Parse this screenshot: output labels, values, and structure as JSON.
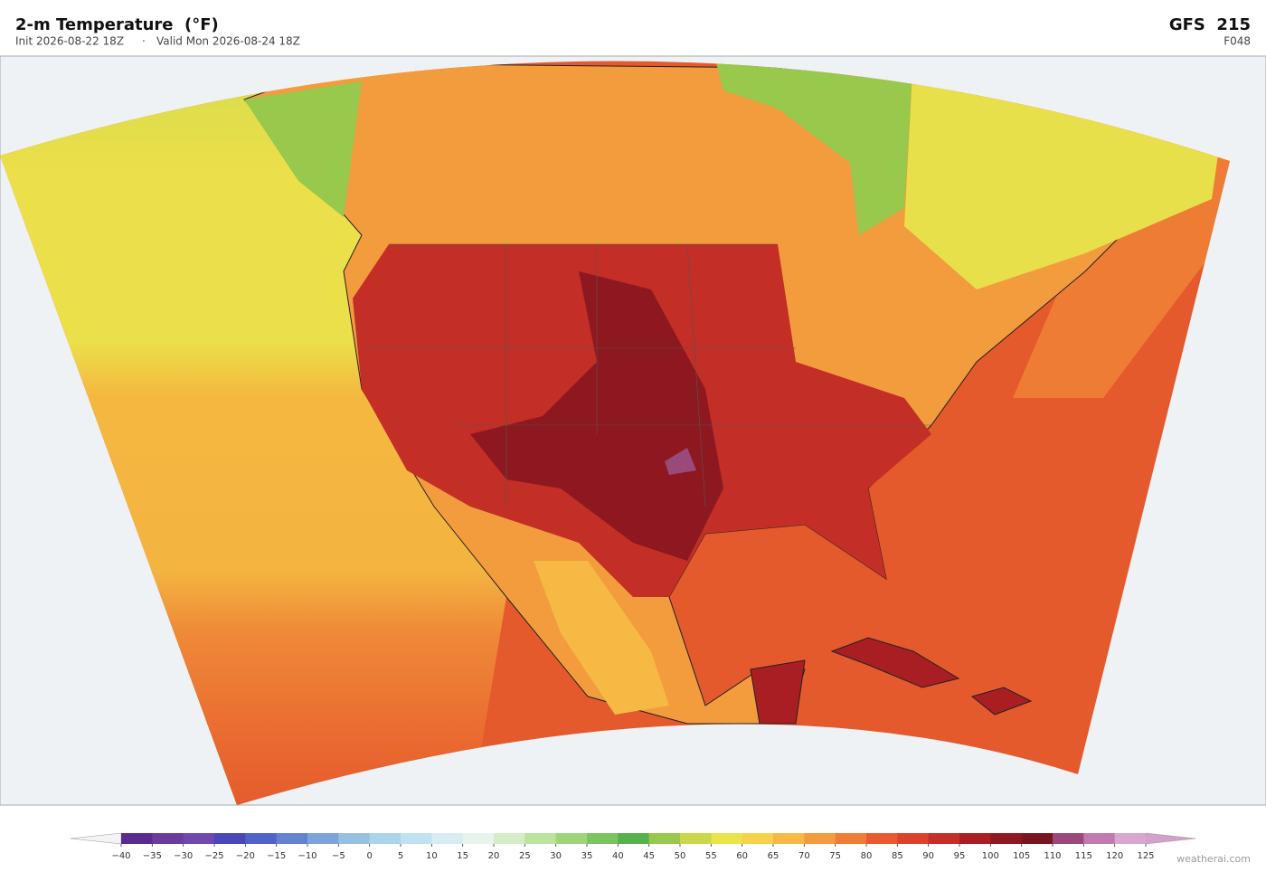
{
  "header": {
    "title": "2-m Temperature  (°F)",
    "init": "Init 2026-08-22 18Z",
    "valid": "Valid Mon 2026-08-24 18Z",
    "model": "GFS  215",
    "forecast_hour": "F048"
  },
  "colorbar": {
    "ticks": [
      {
        "value": -40,
        "label": "−40"
      },
      {
        "value": -35,
        "label": "−35"
      },
      {
        "value": -30,
        "label": "−30"
      },
      {
        "value": -25,
        "label": "−25"
      },
      {
        "value": -20,
        "label": "−20"
      },
      {
        "value": -15,
        "label": "−15"
      },
      {
        "value": -10,
        "label": "−10"
      },
      {
        "value": -5,
        "label": "−5"
      },
      0,
      5,
      10,
      15,
      20,
      25,
      30,
      35,
      40,
      45,
      50,
      55,
      60,
      65,
      70,
      75,
      80,
      85,
      90,
      95,
      100,
      105,
      110,
      115,
      120,
      125
    ],
    "colors": [
      "#5b2a90",
      "#6b3b9e",
      "#7048b0",
      "#4a48b8",
      "#4f63c8",
      "#6383d0",
      "#7ea3d8",
      "#95c0e0",
      "#abd4ea",
      "#c0e2f0",
      "#d5edf3",
      "#e6f4ec",
      "#d3edc8",
      "#bce49e",
      "#9fd57a",
      "#7cc460",
      "#58b04c",
      "#98c84c",
      "#c8d84a",
      "#e8e44a",
      "#f4d24a",
      "#f5b944",
      "#f29c3d",
      "#ee7c35",
      "#e65a2e",
      "#d8432a",
      "#c32e26",
      "#a81e22",
      "#8e1820",
      "#7a1420",
      "#9a4a7a",
      "#c07ab0",
      "#d9a6cf"
    ],
    "under_color": "#f4f4f4",
    "over_color": "#d4a0cc"
  },
  "watermark": "weatherai.com"
}
